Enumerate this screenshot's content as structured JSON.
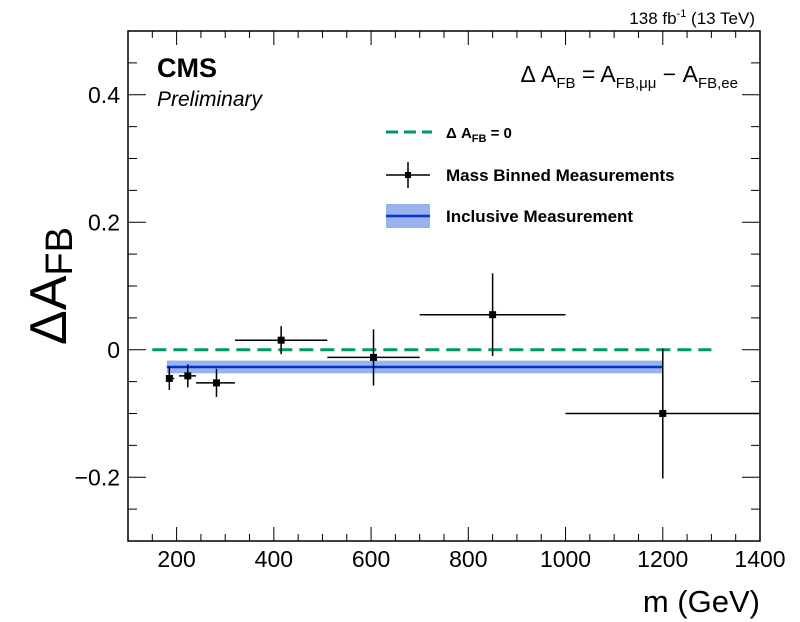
{
  "header": {
    "lumi": "138 fb",
    "lumi_exp": "-1",
    "energy": " (13 TeV)"
  },
  "labels": {
    "cms": "CMS",
    "preliminary": "Preliminary",
    "formula": {
      "delta": "Δ A",
      "sub1": "FB",
      "eq": " = A",
      "sub2": "FB,μμ",
      "minus": " − A",
      "sub3": "FB,ee"
    }
  },
  "chart_data": {
    "type": "scatter",
    "xlabel": "m (GeV)",
    "ylabel": {
      "main": "ΔA",
      "sub": "FB"
    },
    "xlim": [
      100,
      1400
    ],
    "ylim": [
      -0.3,
      0.5
    ],
    "xticks": [
      200,
      400,
      600,
      800,
      1000,
      1200,
      1400
    ],
    "yticks": [
      -0.2,
      0,
      0.2,
      0.4
    ],
    "ytick_labels": [
      "−0.2",
      "0",
      "0.2",
      "0.4"
    ],
    "grid": false,
    "legend_position": "top-right",
    "legend": [
      {
        "key": "zero",
        "prefix": "Δ A",
        "sub": "FB",
        "suffix": " = 0"
      },
      {
        "key": "binned",
        "label": "Mass Binned Measurements"
      },
      {
        "key": "inclusive",
        "label": "Inclusive Measurement"
      }
    ],
    "reference_line": {
      "y": 0,
      "x_range": [
        150,
        1300
      ],
      "color": "#009966"
    },
    "inclusive": {
      "value": -0.027,
      "band": [
        -0.037,
        -0.017
      ],
      "x_range": [
        180,
        1200
      ],
      "color": "#0033cc",
      "band_color": "#99b3ee"
    },
    "binned": {
      "color": "#000000",
      "points": [
        {
          "x": 185,
          "x_low": 180,
          "x_high": 195,
          "y": -0.045,
          "y_err": 0.018
        },
        {
          "x": 223,
          "x_low": 205,
          "x_high": 240,
          "y": -0.041,
          "y_err": 0.018
        },
        {
          "x": 282,
          "x_low": 240,
          "x_high": 320,
          "y": -0.052,
          "y_err": 0.022
        },
        {
          "x": 415,
          "x_low": 320,
          "x_high": 510,
          "y": 0.015,
          "y_err": 0.022
        },
        {
          "x": 605,
          "x_low": 510,
          "x_high": 700,
          "y": -0.012,
          "y_err": 0.044
        },
        {
          "x": 850,
          "x_low": 700,
          "x_high": 1000,
          "y": 0.055,
          "y_err": 0.065
        },
        {
          "x": 1200,
          "x_low": 1000,
          "x_high": 1400,
          "y": -0.1,
          "y_err": 0.102
        }
      ]
    }
  }
}
